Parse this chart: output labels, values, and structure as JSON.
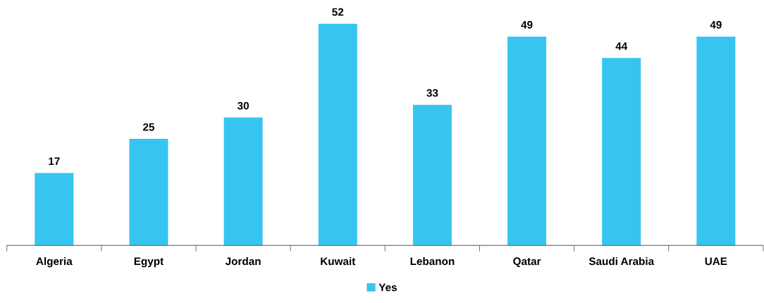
{
  "chart_data": {
    "type": "bar",
    "categories": [
      "Algeria",
      "Egypt",
      "Jordan",
      "Kuwait",
      "Lebanon",
      "Qatar",
      "Saudi Arabia",
      "UAE"
    ],
    "series": [
      {
        "name": "Yes",
        "color": "#36c5f0",
        "values": [
          17,
          25,
          30,
          52,
          33,
          49,
          44,
          49
        ]
      }
    ],
    "data_labels": true,
    "legend": "bottom",
    "grid": false,
    "tick_labels": "x"
  }
}
